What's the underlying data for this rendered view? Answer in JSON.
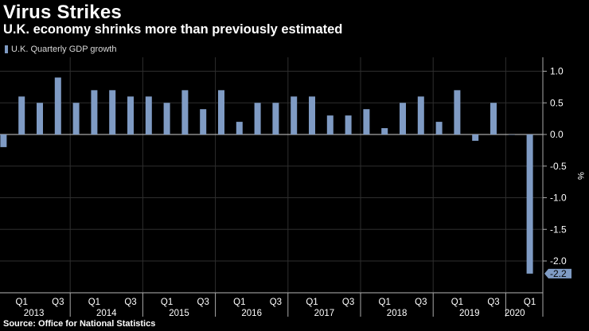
{
  "title": "Virus Strikes",
  "subtitle": "U.K. economy shrinks more than previously estimated",
  "source": "Source: Office for National Statistics",
  "colors": {
    "bar": "#7f9bc4",
    "axis": "#aaaaaa",
    "grid": "#2e2e2e",
    "label_bg": "#7f9bc4"
  },
  "chart_data": {
    "type": "bar",
    "legend": "U.K. Quarterly GDP growth",
    "ylabel": "%",
    "ylim": [
      -2.4,
      1.25
    ],
    "yticks": [
      "1.0",
      "0.5",
      "0.0",
      "-0.5",
      "-1.0",
      "-1.5",
      "-2.0"
    ],
    "ytick_values": [
      1.0,
      0.5,
      0.0,
      -0.5,
      -1.0,
      -1.5,
      -2.0
    ],
    "values": [
      -0.2,
      0.6,
      0.5,
      0.9,
      0.5,
      0.7,
      0.7,
      0.6,
      0.6,
      0.5,
      0.7,
      0.4,
      0.7,
      0.2,
      0.5,
      0.5,
      0.6,
      0.6,
      0.3,
      0.3,
      0.4,
      0.1,
      0.5,
      0.6,
      0.2,
      0.7,
      -0.1,
      0.5,
      0.0,
      -2.2
    ],
    "quarter_labels": [
      "Q1",
      "Q3",
      "Q1",
      "Q3",
      "Q1",
      "Q3",
      "Q1",
      "Q3",
      "Q1",
      "Q3",
      "Q1",
      "Q3",
      "Q1",
      "Q3",
      "Q1"
    ],
    "quarter_label_index": [
      1,
      3,
      5,
      7,
      9,
      11,
      13,
      15,
      17,
      19,
      21,
      23,
      25,
      27,
      29
    ],
    "years": [
      "2013",
      "2014",
      "2015",
      "2016",
      "2017",
      "2018",
      "2019",
      "2020"
    ],
    "last_value_label": "-2.2"
  }
}
